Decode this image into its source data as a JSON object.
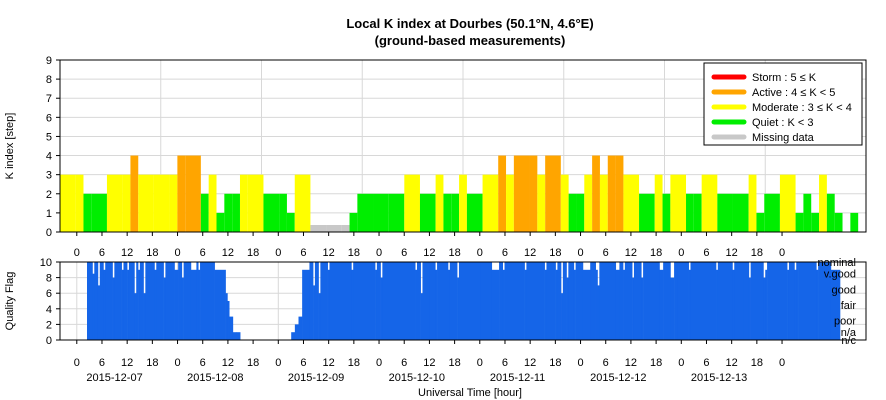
{
  "chart_data": {
    "type": "bar",
    "title": "Local K index at Dourbes (50.1°N, 4.6°E)",
    "subtitle": "(ground-based measurements)",
    "xlabel": "Universal Time [hour]",
    "days": [
      "2015-12-07",
      "2015-12-08",
      "2015-12-09",
      "2015-12-10",
      "2015-12-11",
      "2015-12-12",
      "2015-12-13"
    ],
    "hour_ticks": [
      "0",
      "6",
      "12",
      "18"
    ],
    "final_tick": "0",
    "grid": true,
    "k_panel": {
      "type": "bar",
      "ylabel": "K index [step]",
      "ylim": [
        0,
        9
      ],
      "yticks": [
        "0",
        "1",
        "2",
        "3",
        "4",
        "5",
        "6",
        "7",
        "8",
        "9"
      ],
      "x_unit": "hour since 2015-12-07 00:00 UT",
      "bin_hours": 3,
      "colors": {
        "storm": "#ff0000",
        "active": "#ffa500",
        "moderate": "#ffff00",
        "quiet": "#00ee00",
        "missing": "#c8c8c8"
      },
      "legend_position": "top-right",
      "legend": [
        {
          "key": "storm",
          "label": "Storm : 5 ≤ K"
        },
        {
          "key": "active",
          "label": "Active : 4 ≤ K < 5"
        },
        {
          "key": "moderate",
          "label": "Moderate : 3 ≤ K < 4"
        },
        {
          "key": "quiet",
          "label": "Quiet : K < 3"
        },
        {
          "key": "missing",
          "label": "Missing data"
        }
      ],
      "values": [
        [
          0,
          3
        ],
        [
          1,
          3
        ],
        [
          1.5,
          2
        ],
        [
          2,
          2
        ],
        [
          3,
          3
        ],
        [
          4,
          3
        ],
        [
          4.5,
          4
        ],
        [
          5,
          3
        ],
        [
          6,
          3
        ],
        [
          7,
          3
        ],
        [
          7.5,
          4
        ],
        [
          8,
          4
        ],
        [
          9,
          2
        ],
        [
          9.5,
          3
        ],
        [
          10,
          1
        ],
        [
          10.5,
          2
        ],
        [
          11,
          2
        ],
        [
          11.5,
          3
        ],
        [
          12,
          3
        ],
        [
          13,
          2
        ],
        [
          14,
          2
        ],
        [
          14.5,
          1
        ],
        [
          15,
          3
        ],
        [
          16,
          0
        ],
        [
          17,
          0
        ],
        [
          18,
          0
        ],
        [
          18.5,
          1
        ],
        [
          19,
          2
        ],
        [
          20,
          2
        ],
        [
          21,
          2
        ],
        [
          22,
          3
        ],
        [
          23,
          2
        ],
        [
          24,
          3
        ],
        [
          24.5,
          2
        ],
        [
          25,
          2
        ],
        [
          25.5,
          3
        ],
        [
          26,
          2
        ],
        [
          27,
          3
        ],
        [
          28,
          4
        ],
        [
          28.5,
          3
        ],
        [
          29,
          4
        ],
        [
          30,
          4
        ],
        [
          30.5,
          3
        ],
        [
          31,
          4
        ],
        [
          32,
          3
        ],
        [
          32.5,
          2
        ],
        [
          33,
          2
        ],
        [
          33.5,
          3
        ],
        [
          34,
          4
        ],
        [
          34.5,
          3
        ],
        [
          35,
          4
        ],
        [
          35.5,
          4
        ],
        [
          36,
          3
        ],
        [
          37,
          2
        ],
        [
          38,
          3
        ],
        [
          38.5,
          2
        ],
        [
          39,
          3
        ],
        [
          40,
          2
        ],
        [
          40.5,
          2
        ],
        [
          41,
          3
        ],
        [
          42,
          2
        ],
        [
          43,
          2
        ],
        [
          44,
          3
        ],
        [
          44.5,
          1
        ],
        [
          45,
          2
        ],
        [
          46,
          3
        ],
        [
          47,
          1
        ],
        [
          47.5,
          2
        ],
        [
          48,
          1
        ],
        [
          48.5,
          3
        ],
        [
          49,
          2
        ],
        [
          49.5,
          1
        ],
        [
          50,
          0
        ],
        [
          50.5,
          1
        ],
        [
          51,
          0
        ]
      ]
    },
    "quality_panel": {
      "type": "bar",
      "ylabel": "Quality Flag",
      "ylim": [
        0,
        10
      ],
      "yticks": [
        "0",
        "2",
        "4",
        "6",
        "8",
        "10"
      ],
      "color": "#1565e8",
      "labels": [
        "nominal",
        "v.good",
        "good",
        "fair",
        "poor",
        "n/a",
        "n/c"
      ],
      "label_values": [
        10,
        8.5,
        6.5,
        4.5,
        2.5,
        1,
        0
      ],
      "x_unit": "hour since 2015-12-07 00:00 UT",
      "base": 10,
      "segments": [
        [
          0,
          3,
          10
        ],
        [
          3,
          4,
          8.5
        ],
        [
          4,
          6,
          10
        ],
        [
          6,
          7,
          7
        ],
        [
          7,
          9,
          10
        ],
        [
          9,
          10,
          9
        ],
        [
          10,
          14,
          10
        ],
        [
          14,
          15,
          8
        ],
        [
          15,
          19,
          10
        ],
        [
          19,
          20,
          9
        ],
        [
          20,
          22,
          10
        ],
        [
          22,
          23,
          9
        ],
        [
          23,
          26,
          10
        ],
        [
          26,
          27,
          6
        ],
        [
          27,
          28,
          10
        ],
        [
          28,
          29,
          9
        ],
        [
          29,
          31,
          10
        ],
        [
          31,
          32,
          6
        ],
        [
          32,
          37,
          10
        ],
        [
          37,
          38,
          9
        ],
        [
          38,
          42,
          10
        ],
        [
          42,
          43,
          8
        ],
        [
          43,
          48,
          10
        ],
        [
          48,
          50,
          9
        ],
        [
          50,
          52,
          10
        ],
        [
          52,
          53,
          8
        ],
        [
          53,
          57,
          10
        ],
        [
          57,
          60,
          9
        ],
        [
          60,
          61,
          10
        ],
        [
          61,
          62,
          9
        ],
        [
          62,
          70,
          10
        ],
        [
          70,
          76,
          9
        ],
        [
          76,
          77,
          6
        ],
        [
          77,
          78,
          5
        ],
        [
          78,
          80,
          3
        ],
        [
          80,
          82,
          1
        ],
        [
          82,
          84,
          1
        ],
        [
          84,
          90,
          0
        ],
        [
          90,
          100,
          0
        ],
        [
          100,
          108,
          0
        ],
        [
          108,
          112,
          0
        ],
        [
          112,
          114,
          1
        ],
        [
          114,
          116,
          2
        ],
        [
          116,
          118,
          3
        ],
        [
          118,
          122,
          9
        ],
        [
          122,
          124,
          10
        ],
        [
          124,
          125,
          7
        ],
        [
          125,
          127,
          10
        ],
        [
          127,
          128,
          6
        ],
        [
          128,
          132,
          10
        ],
        [
          132,
          133,
          9
        ],
        [
          133,
          145,
          10
        ],
        [
          145,
          146,
          9
        ],
        [
          146,
          158,
          10
        ],
        [
          158,
          159,
          9
        ],
        [
          159,
          161,
          10
        ],
        [
          161,
          162,
          8
        ],
        [
          162,
          180,
          10
        ],
        [
          180,
          181,
          9
        ],
        [
          181,
          183,
          10
        ],
        [
          183,
          184,
          6
        ],
        [
          184,
          188,
          10
        ],
        [
          188,
          191,
          10
        ],
        [
          191,
          192,
          9
        ],
        [
          192,
          198,
          10
        ],
        [
          198,
          199,
          9
        ],
        [
          199,
          203,
          10
        ],
        [
          203,
          204,
          8
        ],
        [
          204,
          216,
          10
        ],
        [
          216,
          222,
          10
        ],
        [
          222,
          226,
          9
        ],
        [
          226,
          228,
          10
        ],
        [
          228,
          229,
          9
        ],
        [
          229,
          240,
          10
        ],
        [
          240,
          241,
          9
        ],
        [
          241,
          251,
          10
        ],
        [
          251,
          252,
          9
        ],
        [
          252,
          257,
          10
        ],
        [
          257,
          258,
          9
        ],
        [
          258,
          260,
          10
        ],
        [
          260,
          261,
          6
        ],
        [
          261,
          263,
          10
        ],
        [
          263,
          264,
          8
        ],
        [
          264,
          267,
          10
        ],
        [
          267,
          268,
          9
        ],
        [
          268,
          272,
          10
        ],
        [
          272,
          276,
          9
        ],
        [
          276,
          279,
          10
        ],
        [
          279,
          280,
          9
        ],
        [
          280,
          281,
          7
        ],
        [
          281,
          290,
          10
        ],
        [
          290,
          292,
          9
        ],
        [
          292,
          294,
          10
        ],
        [
          294,
          295,
          9
        ],
        [
          295,
          299,
          10
        ],
        [
          299,
          300,
          8
        ],
        [
          300,
          304,
          10
        ],
        [
          304,
          305,
          8
        ],
        [
          305,
          314,
          10
        ],
        [
          314,
          316,
          9
        ],
        [
          316,
          320,
          10
        ],
        [
          320,
          322,
          8
        ],
        [
          322,
          324,
          10
        ],
        [
          324,
          330,
          10
        ],
        [
          330,
          331,
          9
        ],
        [
          331,
          345,
          10
        ],
        [
          345,
          346,
          9
        ],
        [
          346,
          354,
          10
        ],
        [
          354,
          355,
          9
        ],
        [
          355,
          360,
          10
        ],
        [
          360,
          363,
          10
        ],
        [
          363,
          364,
          8
        ],
        [
          364,
          371,
          10
        ],
        [
          371,
          372,
          8
        ],
        [
          372,
          373,
          9
        ],
        [
          373,
          384,
          10
        ],
        [
          384,
          385,
          9
        ],
        [
          385,
          388,
          10
        ],
        [
          388,
          389,
          9
        ],
        [
          389,
          390,
          10
        ],
        [
          390,
          400,
          10
        ],
        [
          400,
          401,
          9
        ],
        [
          401,
          408,
          10
        ],
        [
          408,
          413,
          9
        ]
      ]
    }
  }
}
